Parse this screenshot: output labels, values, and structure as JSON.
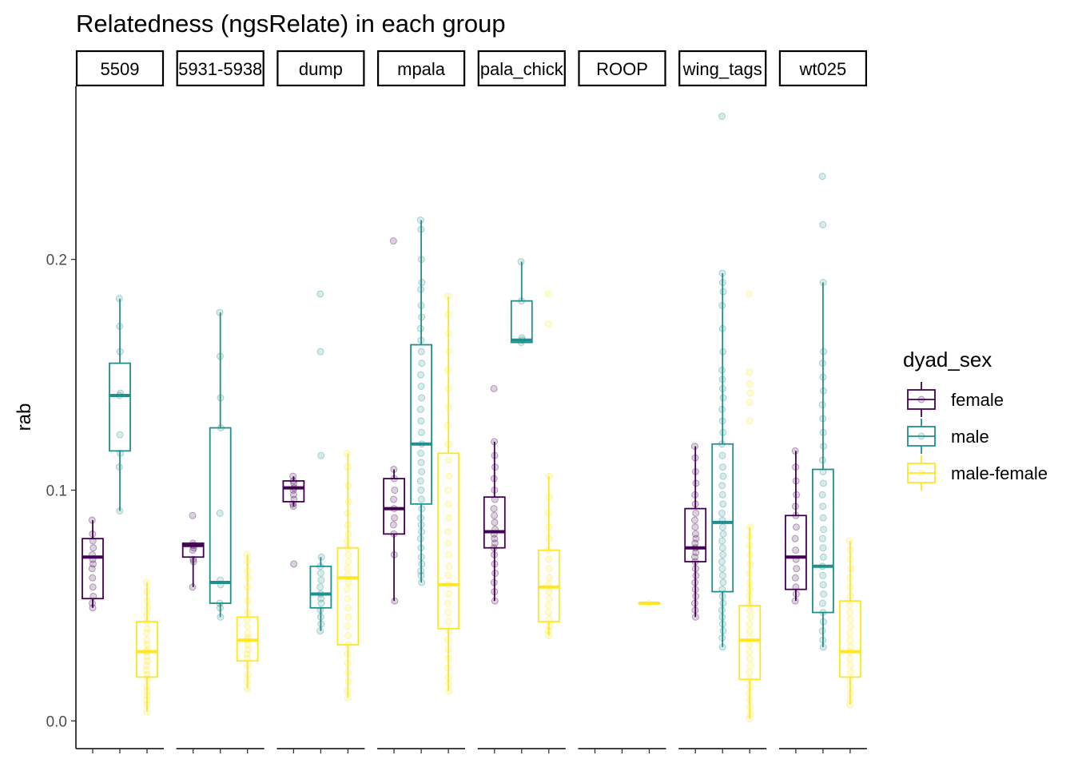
{
  "chart_data": {
    "type": "box",
    "title": "Relatedness (ngsRelate) in each group",
    "ylabel": "rab",
    "xlabel": "",
    "ylim": [
      -0.012,
      0.275
    ],
    "y_ticks": [
      0.0,
      0.1,
      0.2
    ],
    "y_tick_labels": [
      "0.0",
      "0.1",
      "0.2"
    ],
    "facets": [
      "5509",
      "5931-5938",
      "dump",
      "mpala",
      "mpala_chick",
      "ROOP",
      "wing_tags",
      "wt025"
    ],
    "facet_labels": [
      "5509",
      "5931-5938",
      "dump",
      "mpala",
      "pala_chick",
      "ROOP",
      "wing_tags",
      "wt025"
    ],
    "legend": {
      "title": "dyad_sex",
      "position": "right",
      "entries": [
        {
          "label": "female",
          "color": "#440154"
        },
        {
          "label": "male",
          "color": "#21908C"
        },
        {
          "label": "male-female",
          "color": "#FDE725"
        }
      ]
    },
    "groups": [
      {
        "facet": "5509",
        "dyad_sex": "female",
        "whisker_low": 0.049,
        "q1": 0.053,
        "median": 0.071,
        "q3": 0.079,
        "whisker_high": 0.087,
        "points": [
          0.087,
          0.081,
          0.078,
          0.075,
          0.072,
          0.07,
          0.068,
          0.066,
          0.062,
          0.058,
          0.054,
          0.051,
          0.049
        ]
      },
      {
        "facet": "5509",
        "dyad_sex": "male",
        "whisker_low": 0.091,
        "q1": 0.117,
        "median": 0.141,
        "q3": 0.155,
        "whisker_high": 0.183,
        "points": [
          0.183,
          0.171,
          0.16,
          0.142,
          0.141,
          0.124,
          0.116,
          0.11,
          0.091
        ]
      },
      {
        "facet": "5509",
        "dyad_sex": "male-female",
        "whisker_low": 0.004,
        "q1": 0.019,
        "median": 0.03,
        "q3": 0.043,
        "whisker_high": 0.06,
        "points": [
          0.06,
          0.056,
          0.052,
          0.049,
          0.046,
          0.043,
          0.04,
          0.038,
          0.035,
          0.033,
          0.031,
          0.03,
          0.028,
          0.026,
          0.024,
          0.022,
          0.02,
          0.018,
          0.015,
          0.013,
          0.011,
          0.009,
          0.007,
          0.004
        ]
      },
      {
        "facet": "5931-5938",
        "dyad_sex": "female",
        "whisker_low": 0.058,
        "q1": 0.071,
        "median": 0.076,
        "q3": 0.077,
        "whisker_high": 0.077,
        "points": [
          0.089,
          0.077,
          0.076,
          0.075,
          0.074,
          0.07,
          0.069,
          0.058
        ]
      },
      {
        "facet": "5931-5938",
        "dyad_sex": "male",
        "whisker_low": 0.045,
        "q1": 0.051,
        "median": 0.06,
        "q3": 0.127,
        "whisker_high": 0.177,
        "points": [
          0.177,
          0.158,
          0.14,
          0.127,
          0.09,
          0.061,
          0.059,
          0.051,
          0.049,
          0.045
        ]
      },
      {
        "facet": "5931-5938",
        "dyad_sex": "male-female",
        "whisker_low": 0.014,
        "q1": 0.026,
        "median": 0.035,
        "q3": 0.045,
        "whisker_high": 0.072,
        "points": [
          0.072,
          0.069,
          0.065,
          0.062,
          0.058,
          0.052,
          0.047,
          0.044,
          0.041,
          0.038,
          0.036,
          0.035,
          0.033,
          0.031,
          0.029,
          0.027,
          0.024,
          0.02,
          0.017,
          0.014
        ]
      },
      {
        "facet": "dump",
        "dyad_sex": "female",
        "whisker_low": 0.093,
        "q1": 0.095,
        "median": 0.101,
        "q3": 0.104,
        "whisker_high": 0.106,
        "points": [
          0.106,
          0.104,
          0.103,
          0.101,
          0.1,
          0.098,
          0.096,
          0.094,
          0.093,
          0.068
        ]
      },
      {
        "facet": "dump",
        "dyad_sex": "male",
        "whisker_low": 0.039,
        "q1": 0.049,
        "median": 0.055,
        "q3": 0.067,
        "whisker_high": 0.071,
        "points": [
          0.185,
          0.16,
          0.115,
          0.071,
          0.067,
          0.064,
          0.061,
          0.058,
          0.055,
          0.053,
          0.051,
          0.048,
          0.045,
          0.042,
          0.039
        ]
      },
      {
        "facet": "dump",
        "dyad_sex": "male-female",
        "whisker_low": 0.01,
        "q1": 0.033,
        "median": 0.062,
        "q3": 0.075,
        "whisker_high": 0.116,
        "points": [
          0.116,
          0.11,
          0.102,
          0.095,
          0.09,
          0.085,
          0.081,
          0.078,
          0.075,
          0.072,
          0.069,
          0.066,
          0.063,
          0.06,
          0.057,
          0.053,
          0.049,
          0.045,
          0.041,
          0.037,
          0.033,
          0.029,
          0.025,
          0.021,
          0.017,
          0.013,
          0.01
        ]
      },
      {
        "facet": "mpala",
        "dyad_sex": "female",
        "whisker_low": 0.052,
        "q1": 0.081,
        "median": 0.092,
        "q3": 0.105,
        "whisker_high": 0.109,
        "points": [
          0.208,
          0.109,
          0.105,
          0.1,
          0.096,
          0.092,
          0.088,
          0.085,
          0.081,
          0.072,
          0.052
        ]
      },
      {
        "facet": "mpala",
        "dyad_sex": "male",
        "whisker_low": 0.06,
        "q1": 0.094,
        "median": 0.12,
        "q3": 0.163,
        "whisker_high": 0.217,
        "points": [
          0.217,
          0.213,
          0.2,
          0.19,
          0.187,
          0.18,
          0.175,
          0.17,
          0.165,
          0.16,
          0.155,
          0.15,
          0.145,
          0.14,
          0.135,
          0.13,
          0.125,
          0.12,
          0.116,
          0.112,
          0.108,
          0.104,
          0.1,
          0.096,
          0.092,
          0.088,
          0.085,
          0.082,
          0.079,
          0.075,
          0.071,
          0.068,
          0.065,
          0.063,
          0.06
        ]
      },
      {
        "facet": "mpala",
        "dyad_sex": "male-female",
        "whisker_low": 0.013,
        "q1": 0.04,
        "median": 0.059,
        "q3": 0.116,
        "whisker_high": 0.184,
        "points": [
          0.184,
          0.176,
          0.168,
          0.16,
          0.152,
          0.144,
          0.136,
          0.128,
          0.12,
          0.113,
          0.106,
          0.1,
          0.094,
          0.088,
          0.082,
          0.077,
          0.072,
          0.067,
          0.063,
          0.059,
          0.055,
          0.051,
          0.047,
          0.043,
          0.039,
          0.035,
          0.031,
          0.027,
          0.023,
          0.019,
          0.016,
          0.013
        ]
      },
      {
        "facet": "mpala_chick",
        "dyad_sex": "female",
        "whisker_low": 0.052,
        "q1": 0.075,
        "median": 0.082,
        "q3": 0.097,
        "whisker_high": 0.121,
        "points": [
          0.144,
          0.121,
          0.115,
          0.11,
          0.105,
          0.1,
          0.096,
          0.092,
          0.089,
          0.086,
          0.083,
          0.081,
          0.079,
          0.077,
          0.075,
          0.072,
          0.068,
          0.064,
          0.06,
          0.056,
          0.052
        ]
      },
      {
        "facet": "mpala_chick",
        "dyad_sex": "male",
        "whisker_low": 0.164,
        "q1": 0.164,
        "median": 0.165,
        "q3": 0.182,
        "whisker_high": 0.199,
        "points": [
          0.199,
          0.182,
          0.166,
          0.165,
          0.164
        ]
      },
      {
        "facet": "mpala_chick",
        "dyad_sex": "male-female",
        "whisker_low": 0.037,
        "q1": 0.043,
        "median": 0.058,
        "q3": 0.074,
        "whisker_high": 0.106,
        "points": [
          0.185,
          0.172,
          0.106,
          0.097,
          0.09,
          0.084,
          0.079,
          0.074,
          0.07,
          0.066,
          0.062,
          0.059,
          0.056,
          0.053,
          0.05,
          0.047,
          0.044,
          0.041,
          0.039,
          0.037
        ]
      },
      {
        "facet": "ROOP",
        "dyad_sex": "male-female",
        "whisker_low": 0.051,
        "q1": 0.051,
        "median": 0.051,
        "q3": 0.051,
        "whisker_high": 0.051,
        "points": [
          0.051
        ]
      },
      {
        "facet": "wing_tags",
        "dyad_sex": "female",
        "whisker_low": 0.045,
        "q1": 0.069,
        "median": 0.075,
        "q3": 0.092,
        "whisker_high": 0.119,
        "points": [
          0.119,
          0.114,
          0.108,
          0.103,
          0.098,
          0.094,
          0.09,
          0.087,
          0.084,
          0.081,
          0.079,
          0.077,
          0.075,
          0.073,
          0.071,
          0.069,
          0.066,
          0.063,
          0.06,
          0.057,
          0.054,
          0.051,
          0.048,
          0.045
        ]
      },
      {
        "facet": "wing_tags",
        "dyad_sex": "male",
        "whisker_low": 0.032,
        "q1": 0.056,
        "median": 0.086,
        "q3": 0.12,
        "whisker_high": 0.194,
        "points": [
          0.262,
          0.194,
          0.19,
          0.186,
          0.18,
          0.17,
          0.16,
          0.152,
          0.148,
          0.144,
          0.14,
          0.135,
          0.13,
          0.125,
          0.12,
          0.115,
          0.11,
          0.106,
          0.102,
          0.098,
          0.094,
          0.09,
          0.087,
          0.084,
          0.081,
          0.078,
          0.075,
          0.072,
          0.069,
          0.066,
          0.063,
          0.06,
          0.057,
          0.054,
          0.051,
          0.048,
          0.045,
          0.042,
          0.039,
          0.036,
          0.032
        ]
      },
      {
        "facet": "wing_tags",
        "dyad_sex": "male-female",
        "whisker_low": 0.001,
        "q1": 0.018,
        "median": 0.035,
        "q3": 0.05,
        "whisker_high": 0.084,
        "points": [
          0.185,
          0.151,
          0.146,
          0.142,
          0.138,
          0.13,
          0.084,
          0.08,
          0.076,
          0.072,
          0.068,
          0.064,
          0.06,
          0.057,
          0.054,
          0.051,
          0.048,
          0.045,
          0.042,
          0.039,
          0.036,
          0.033,
          0.03,
          0.027,
          0.024,
          0.021,
          0.018,
          0.015,
          0.012,
          0.009,
          0.006,
          0.003,
          0.001
        ]
      },
      {
        "facet": "wt025",
        "dyad_sex": "female",
        "whisker_low": 0.052,
        "q1": 0.057,
        "median": 0.071,
        "q3": 0.089,
        "whisker_high": 0.117,
        "points": [
          0.117,
          0.11,
          0.104,
          0.098,
          0.093,
          0.089,
          0.084,
          0.079,
          0.074,
          0.07,
          0.066,
          0.062,
          0.058,
          0.055,
          0.052
        ]
      },
      {
        "facet": "wt025",
        "dyad_sex": "male",
        "whisker_low": 0.032,
        "q1": 0.047,
        "median": 0.067,
        "q3": 0.109,
        "whisker_high": 0.19,
        "points": [
          0.236,
          0.215,
          0.19,
          0.16,
          0.155,
          0.149,
          0.143,
          0.137,
          0.131,
          0.125,
          0.119,
          0.113,
          0.108,
          0.103,
          0.098,
          0.093,
          0.088,
          0.083,
          0.079,
          0.075,
          0.071,
          0.067,
          0.063,
          0.059,
          0.055,
          0.051,
          0.047,
          0.043,
          0.039,
          0.035,
          0.032
        ]
      },
      {
        "facet": "wt025",
        "dyad_sex": "male-female",
        "whisker_low": 0.007,
        "q1": 0.019,
        "median": 0.03,
        "q3": 0.052,
        "whisker_high": 0.078,
        "points": [
          0.078,
          0.074,
          0.07,
          0.066,
          0.062,
          0.058,
          0.054,
          0.05,
          0.047,
          0.044,
          0.041,
          0.038,
          0.035,
          0.032,
          0.03,
          0.027,
          0.024,
          0.021,
          0.018,
          0.015,
          0.012,
          0.009,
          0.007
        ]
      }
    ]
  }
}
